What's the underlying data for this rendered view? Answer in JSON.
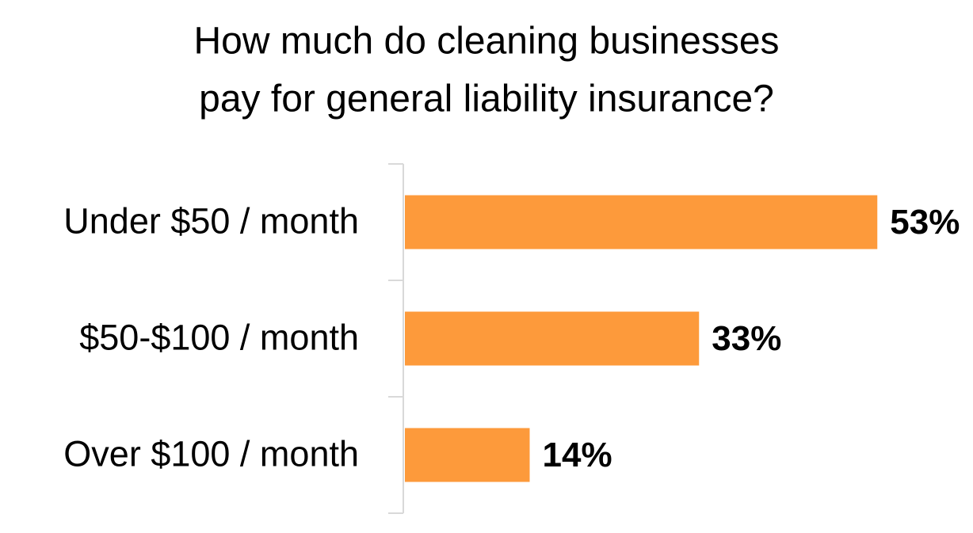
{
  "chart_data": {
    "type": "bar",
    "orientation": "horizontal",
    "title": [
      "How much do cleaning businesses",
      "pay for general liability insurance?"
    ],
    "categories": [
      "Under $50 / month",
      "$50-$100 / month",
      "Over $100 / month"
    ],
    "values": [
      53,
      33,
      14
    ],
    "value_labels": [
      "53%",
      "33%",
      "14%"
    ],
    "color": "#fd9a3b"
  }
}
